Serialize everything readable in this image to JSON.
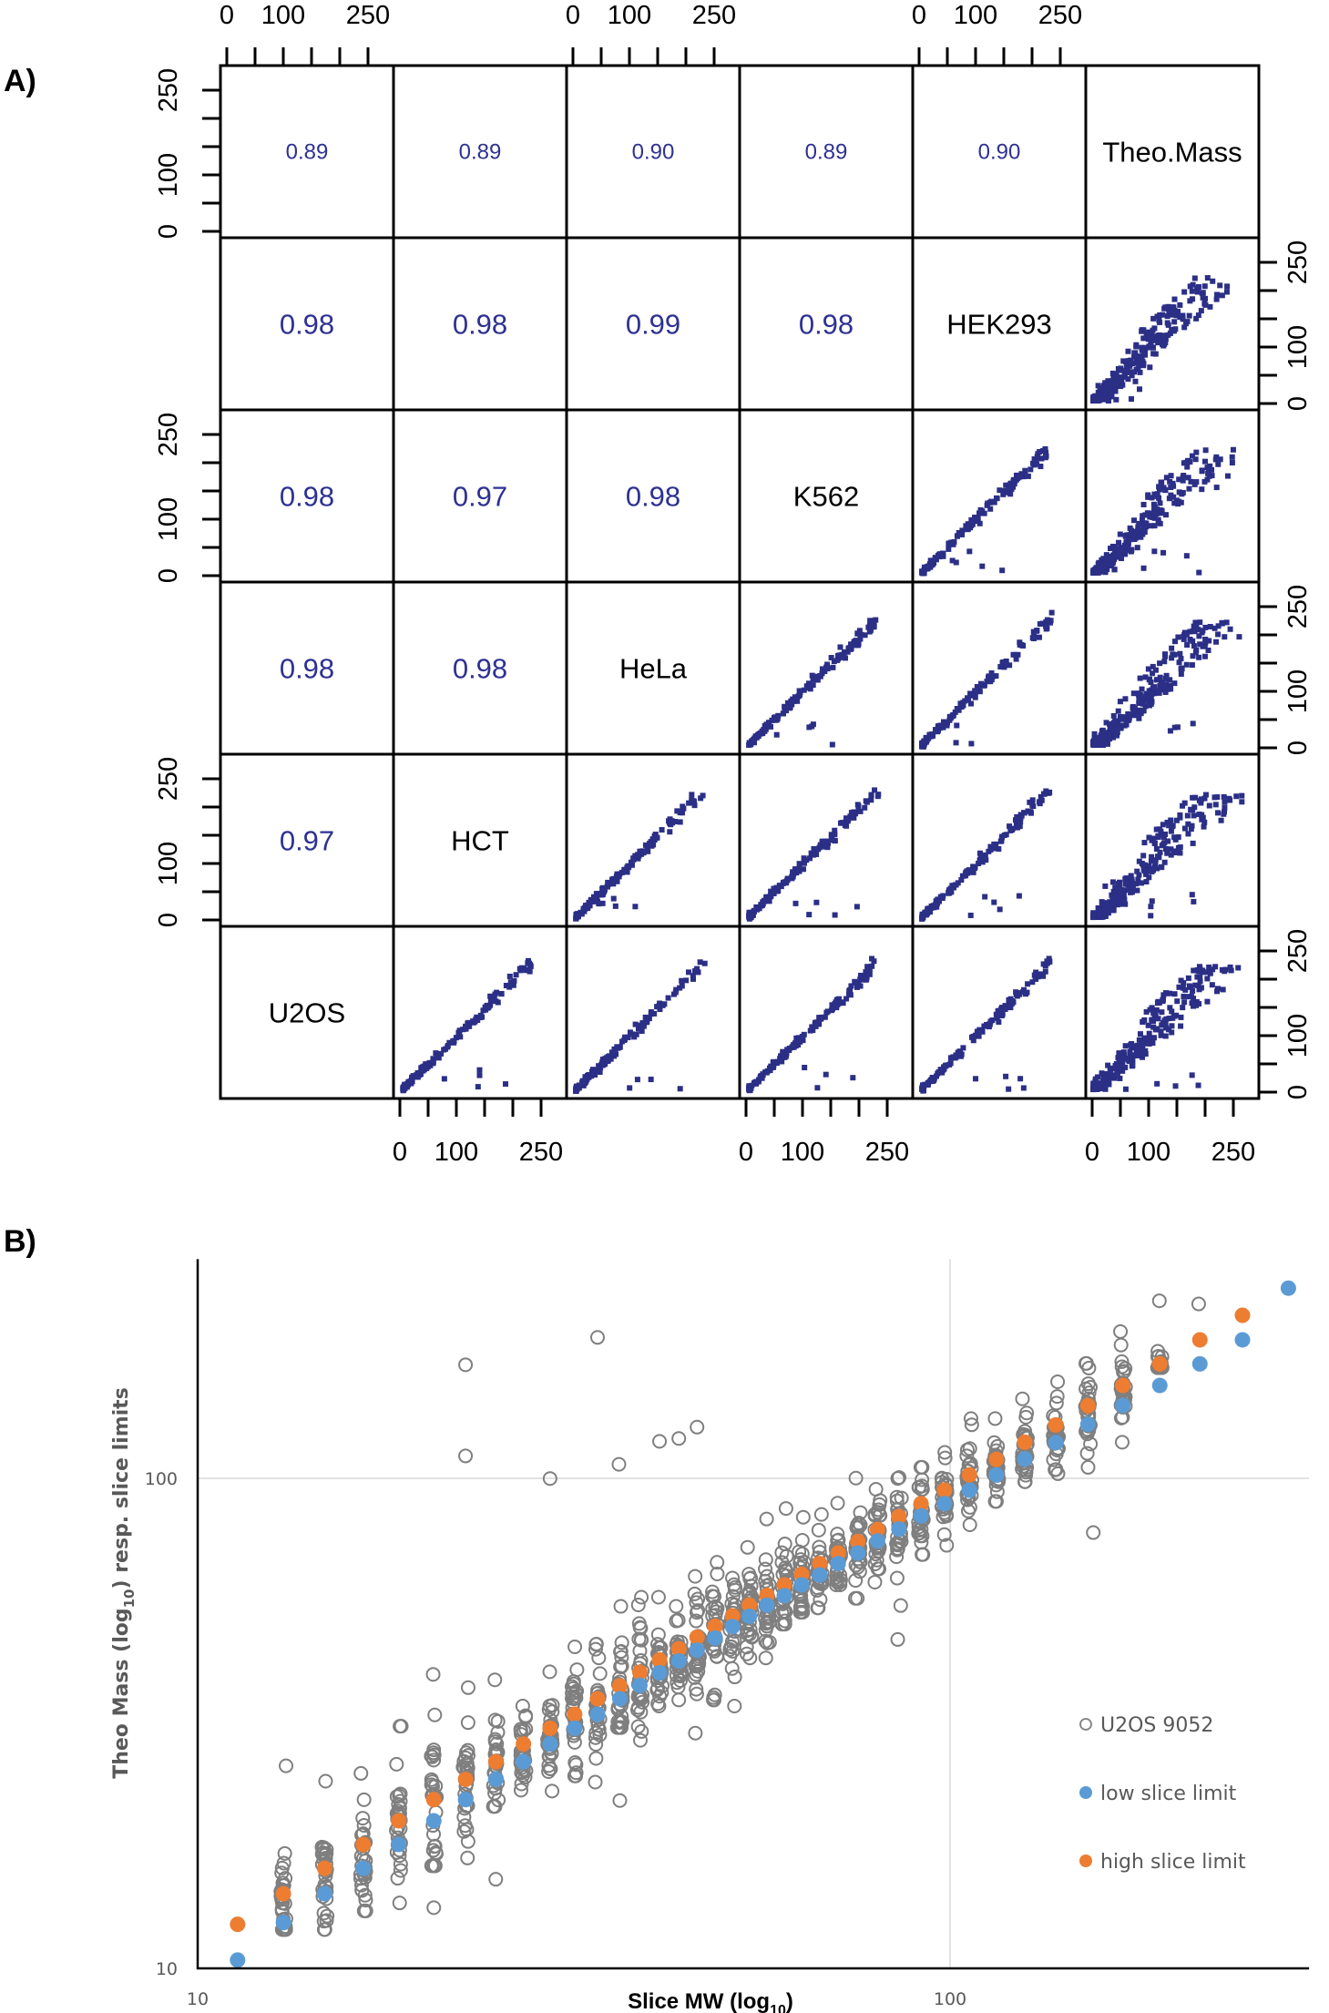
{
  "panels": {
    "a_label": "A)",
    "b_label": "B)"
  },
  "chart_data": [
    {
      "type": "scatter-matrix",
      "panel": "A",
      "variables": [
        "U2OS",
        "HCT",
        "HeLa",
        "K562",
        "HEK293",
        "Theo.Mass"
      ],
      "diagonal_order_top_to_bottom": [
        "Theo.Mass",
        "HEK293",
        "K562",
        "HeLa",
        "HCT",
        "U2OS"
      ],
      "axis_range": [
        0,
        290
      ],
      "tick_values": [
        0,
        50,
        100,
        150,
        200,
        250
      ],
      "tick_labels": [
        "0",
        "100",
        "250"
      ],
      "point_color": "#2b2f86",
      "correlations_upper": [
        {
          "row": 0,
          "col": 0,
          "value": "0.89"
        },
        {
          "row": 0,
          "col": 1,
          "value": "0.89"
        },
        {
          "row": 0,
          "col": 2,
          "value": "0.90"
        },
        {
          "row": 0,
          "col": 3,
          "value": "0.89"
        },
        {
          "row": 0,
          "col": 4,
          "value": "0.90"
        },
        {
          "row": 1,
          "col": 0,
          "value": "0.98"
        },
        {
          "row": 1,
          "col": 1,
          "value": "0.98"
        },
        {
          "row": 1,
          "col": 2,
          "value": "0.99"
        },
        {
          "row": 1,
          "col": 3,
          "value": "0.98"
        },
        {
          "row": 2,
          "col": 0,
          "value": "0.98"
        },
        {
          "row": 2,
          "col": 1,
          "value": "0.97"
        },
        {
          "row": 2,
          "col": 2,
          "value": "0.98"
        },
        {
          "row": 3,
          "col": 0,
          "value": "0.98"
        },
        {
          "row": 3,
          "col": 1,
          "value": "0.98"
        },
        {
          "row": 4,
          "col": 0,
          "value": "0.97"
        }
      ],
      "diagonal_labels": [
        {
          "row": 0,
          "col": 5,
          "text": "Theo.Mass"
        },
        {
          "row": 1,
          "col": 4,
          "text": "HEK293"
        },
        {
          "row": 2,
          "col": 3,
          "text": "K562"
        },
        {
          "row": 3,
          "col": 2,
          "text": "HeLa"
        },
        {
          "row": 4,
          "col": 1,
          "text": "HCT"
        },
        {
          "row": 5,
          "col": 0,
          "text": "U2OS"
        }
      ],
      "scatter_cells_note": "lower-triangle cells show tight linear relationships between cell-line slice MWs; Theo.Mass column shows broader scatter",
      "cell_spread": {
        "cellline_vs_cellline": 6,
        "cellline_vs_theo": 22
      },
      "top_axis_columns": [
        0,
        2,
        4
      ],
      "bottom_axis_columns": [
        1,
        3,
        5
      ],
      "left_axis_rows": [
        0,
        2,
        4
      ],
      "right_axis_rows": [
        1,
        3,
        5
      ]
    },
    {
      "type": "scatter",
      "panel": "B",
      "xscale": "log10",
      "yscale": "log10",
      "xlim": [
        10,
        300
      ],
      "ylim": [
        10,
        280
      ],
      "xlabel_main": "Slice MW (log",
      "xlabel_sub": "10",
      "xlabel_end": ")",
      "ylabel_main": "Theo Mass (log",
      "ylabel_sub": "10",
      "ylabel_end": ") resp. slice limits",
      "x_ticks": [
        {
          "value": 10,
          "label": "10"
        },
        {
          "value": 100,
          "label": "100"
        }
      ],
      "y_ticks": [
        {
          "value": 10,
          "label": "10"
        },
        {
          "value": 100,
          "label": "100"
        }
      ],
      "gridlines": [
        {
          "axis": "x",
          "value": 100
        },
        {
          "axis": "y",
          "value": 100
        }
      ],
      "legend": {
        "position": "right",
        "items": [
          {
            "label": "U2OS 9052",
            "marker": "open-circle",
            "color": "#7f7f7f"
          },
          {
            "label": "low slice limit",
            "marker": "filled-circle",
            "color": "#5b9bd5"
          },
          {
            "label": "high slice limit",
            "marker": "filled-circle",
            "color": "#ed7d31"
          }
        ]
      },
      "slices": [
        {
          "x": 11.3,
          "low": 10.4,
          "high": 12.3,
          "min": null,
          "max": null
        },
        {
          "x": 13.0,
          "low": 12.4,
          "high": 14.2,
          "min": 12.0,
          "max": 25.9
        },
        {
          "x": 14.75,
          "low": 14.2,
          "high": 16.0,
          "min": 12.0,
          "max": 24.1
        },
        {
          "x": 16.6,
          "low": 16.0,
          "high": 17.9,
          "min": 13.1,
          "max": 25.0
        },
        {
          "x": 18.5,
          "low": 17.9,
          "high": 20.0,
          "min": 13.6,
          "max": 31.2
        },
        {
          "x": 20.6,
          "low": 20.0,
          "high": 22.1,
          "min": 16.2,
          "max": 39.8
        },
        {
          "x": 22.7,
          "low": 22.1,
          "high": 24.3,
          "min": 16.8,
          "max": 37.4
        },
        {
          "x": 24.9,
          "low": 24.3,
          "high": 26.4,
          "min": 21.4,
          "max": 38.8
        },
        {
          "x": 27.1,
          "low": 26.4,
          "high": 28.7,
          "min": 23.1,
          "max": 34.3
        },
        {
          "x": 29.4,
          "low": 28.7,
          "high": 30.9,
          "min": 23.0,
          "max": 40.3
        },
        {
          "x": 31.7,
          "low": 30.9,
          "high": 33.0,
          "min": 24.7,
          "max": 45.3
        },
        {
          "x": 34.0,
          "low": 33.0,
          "high": 35.5,
          "min": 24.0,
          "max": 45.9
        },
        {
          "x": 36.4,
          "low": 35.5,
          "high": 37.7,
          "min": 31.0,
          "max": 54.8
        },
        {
          "x": 38.7,
          "low": 37.8,
          "high": 40.2,
          "min": 29.2,
          "max": 57.2
        },
        {
          "x": 41.1,
          "low": 40.1,
          "high": 42.6,
          "min": 34.3,
          "max": 57.2
        },
        {
          "x": 43.6,
          "low": 42.4,
          "high": 44.9,
          "min": 35.3,
          "max": 54.8
        },
        {
          "x": 46.1,
          "low": 44.6,
          "high": 47.4,
          "min": 30.2,
          "max": 63.1
        },
        {
          "x": 48.7,
          "low": 47.2,
          "high": 49.9,
          "min": 35.3,
          "max": 67.4
        },
        {
          "x": 51.4,
          "low": 49.8,
          "high": 52.4,
          "min": 34.3,
          "max": 62.6
        },
        {
          "x": 54.1,
          "low": 52.3,
          "high": 55.1,
          "min": 43.0,
          "max": 72.3
        },
        {
          "x": 57.1,
          "low": 55.1,
          "high": 57.7,
          "min": 43.0,
          "max": 82.6
        },
        {
          "x": 60.2,
          "low": 57.6,
          "high": 60.6,
          "min": 50.4,
          "max": 86.8
        },
        {
          "x": 63.5,
          "low": 60.6,
          "high": 63.7,
          "min": 53.3,
          "max": 83.3
        },
        {
          "x": 67.1,
          "low": 63.5,
          "high": 67.0,
          "min": 54.4,
          "max": 84.4
        },
        {
          "x": 71.0,
          "low": 67.0,
          "high": 70.4,
          "min": 60.6,
          "max": 89.0
        },
        {
          "x": 75.4,
          "low": 70.4,
          "high": 74.3,
          "min": 56.9,
          "max": 100.1
        },
        {
          "x": 80.1,
          "low": 74.5,
          "high": 78.6,
          "min": 61.4,
          "max": 95.0
        },
        {
          "x": 85.5,
          "low": 78.8,
          "high": 83.5,
          "min": 55.0,
          "max": 100.4
        },
        {
          "x": 91.5,
          "low": 83.8,
          "high": 88.8,
          "min": 69.9,
          "max": 105.3
        },
        {
          "x": 98.3,
          "low": 88.8,
          "high": 94.6,
          "min": 73.0,
          "max": 113.0
        },
        {
          "x": 106.1,
          "low": 94.6,
          "high": 101.6,
          "min": 80.4,
          "max": 132.4
        },
        {
          "x": 115.2,
          "low": 101.6,
          "high": 109.3,
          "min": 89.7,
          "max": 132.4
        },
        {
          "x": 125.7,
          "low": 109.5,
          "high": 118.5,
          "min": 98.4,
          "max": 145.3
        },
        {
          "x": 138.2,
          "low": 118.2,
          "high": 128.5,
          "min": 102.2,
          "max": 157.4
        },
        {
          "x": 152.5,
          "low": 128.9,
          "high": 140.7,
          "min": 105.3,
          "max": 171.6
        },
        {
          "x": 169.7,
          "low": 140.8,
          "high": 154.7,
          "min": 118.5,
          "max": 199.3
        },
        {
          "x": 190.0,
          "low": 154.7,
          "high": 171.2,
          "min": 168.2,
          "max": 230.3
        },
        {
          "x": 214.8,
          "low": 171.2,
          "high": 191.7,
          "min": 226.9,
          "max": 226.9
        },
        {
          "x": 244.7,
          "low": 191.7,
          "high": 215.1,
          "min": null,
          "max": null
        },
        {
          "x": 281.6,
          "low": 244.4,
          "high": null,
          "min": null,
          "max": null
        }
      ],
      "top_extra": [
        {
          "x": 244.7,
          "high": 244.4
        }
      ],
      "outliers": [
        {
          "x": 22.7,
          "y": 170.5
        },
        {
          "x": 22.7,
          "y": 111.1
        },
        {
          "x": 29.4,
          "y": 99.9
        },
        {
          "x": 34.0,
          "y": 193.9
        },
        {
          "x": 36.3,
          "y": 106.8
        },
        {
          "x": 41.1,
          "y": 119.0
        },
        {
          "x": 43.6,
          "y": 120.6
        },
        {
          "x": 46.1,
          "y": 127.2
        },
        {
          "x": 85.2,
          "y": 46.9
        },
        {
          "x": 36.4,
          "y": 22.0
        },
        {
          "x": 20.6,
          "y": 13.3
        },
        {
          "x": 24.9,
          "y": 15.2
        },
        {
          "x": 155.0,
          "y": 77.5
        }
      ],
      "colors": {
        "cellline": "#7f7f7f",
        "low": "#5b9bd5",
        "high": "#ed7d31",
        "grid": "#d9d9d9"
      }
    }
  ]
}
